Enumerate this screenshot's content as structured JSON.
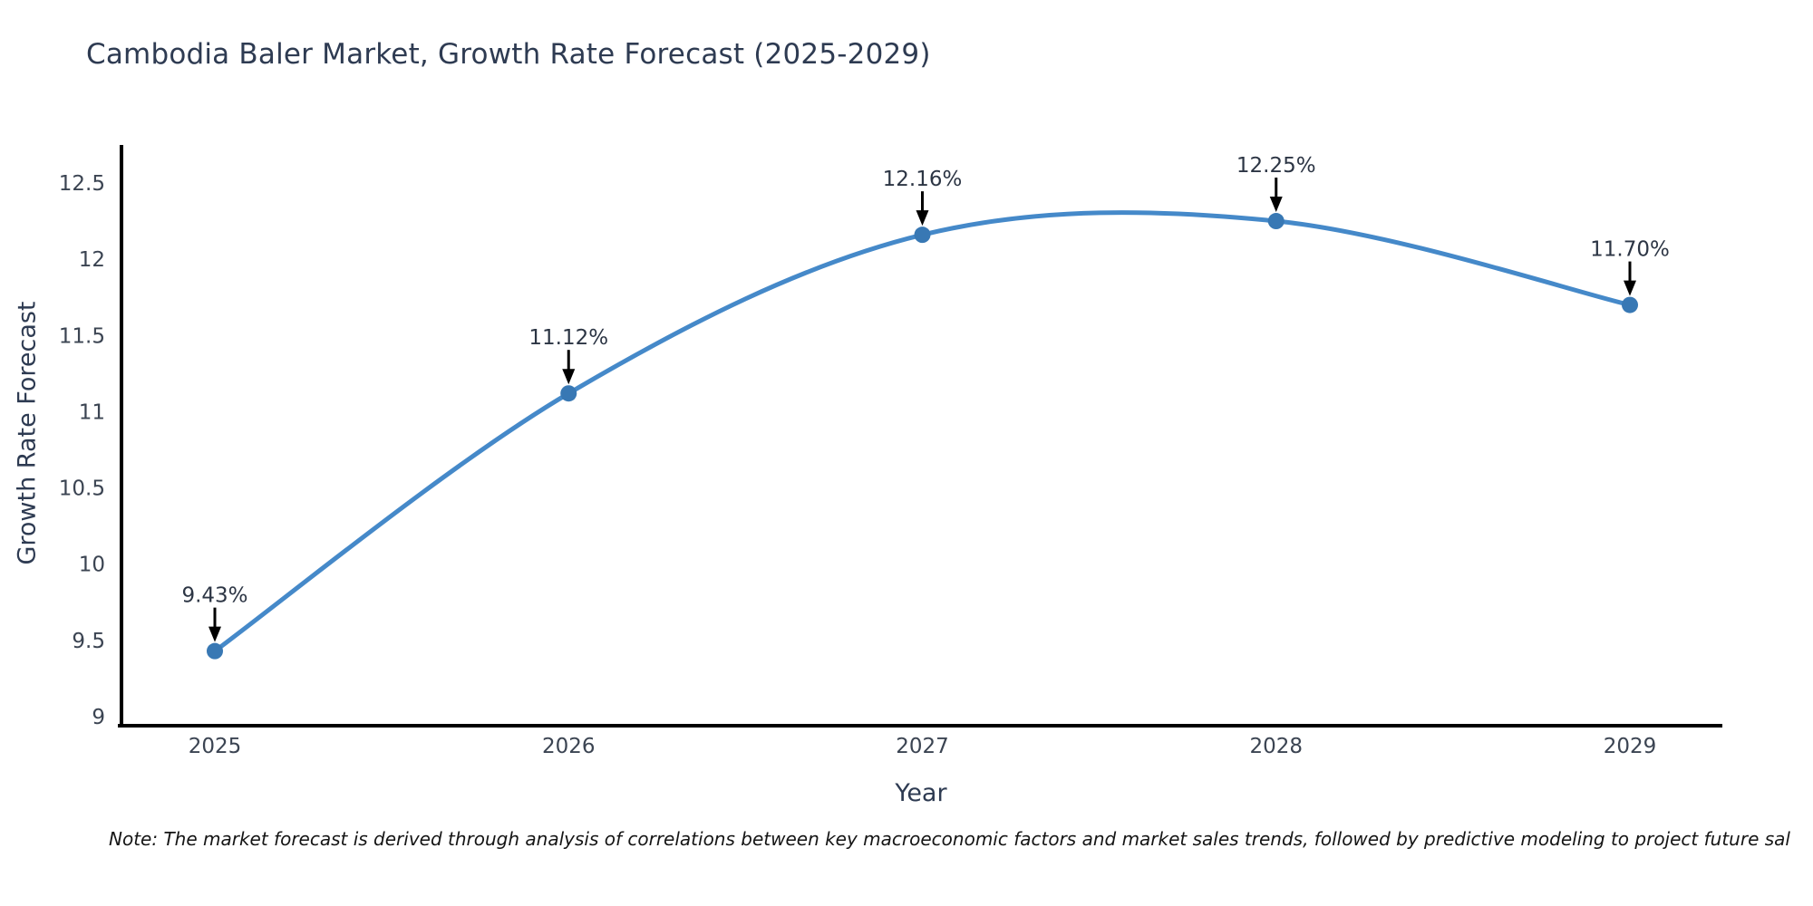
{
  "chart_data": {
    "type": "line",
    "title": "Cambodia Baler Market, Growth Rate Forecast (2025-2029)",
    "xlabel": "Year",
    "ylabel": "Growth Rate Forecast",
    "x": [
      2025,
      2026,
      2027,
      2028,
      2029
    ],
    "series": [
      {
        "name": "Growth Rate Forecast",
        "values": [
          9.43,
          11.12,
          12.16,
          12.25,
          11.7
        ],
        "point_labels": [
          "9.43%",
          "11.12%",
          "12.16%",
          "12.25%",
          "11.70%"
        ]
      }
    ],
    "y_ticks": [
      9,
      9.5,
      10,
      10.5,
      11,
      11.5,
      12,
      12.5
    ],
    "ylim": [
      8.93,
      12.75
    ],
    "grid": false,
    "legend": "none",
    "line_style": "smooth-spline",
    "marker": "circle",
    "annotation_arrows": true,
    "colors": {
      "line": "#4589c9",
      "marker": "#3878b4",
      "axis": "#000000",
      "arrow": "#000000",
      "title_text": "#2e3b52",
      "axis_label_text": "#2e3b52",
      "tick_text": "#3b4452",
      "annotation_text": "#2c3544",
      "note_text": "#151515"
    },
    "note": "Note: The market forecast is derived through analysis of correlations between key macroeconomic factors and market sales trends, followed by predictive modeling to project future sal"
  }
}
